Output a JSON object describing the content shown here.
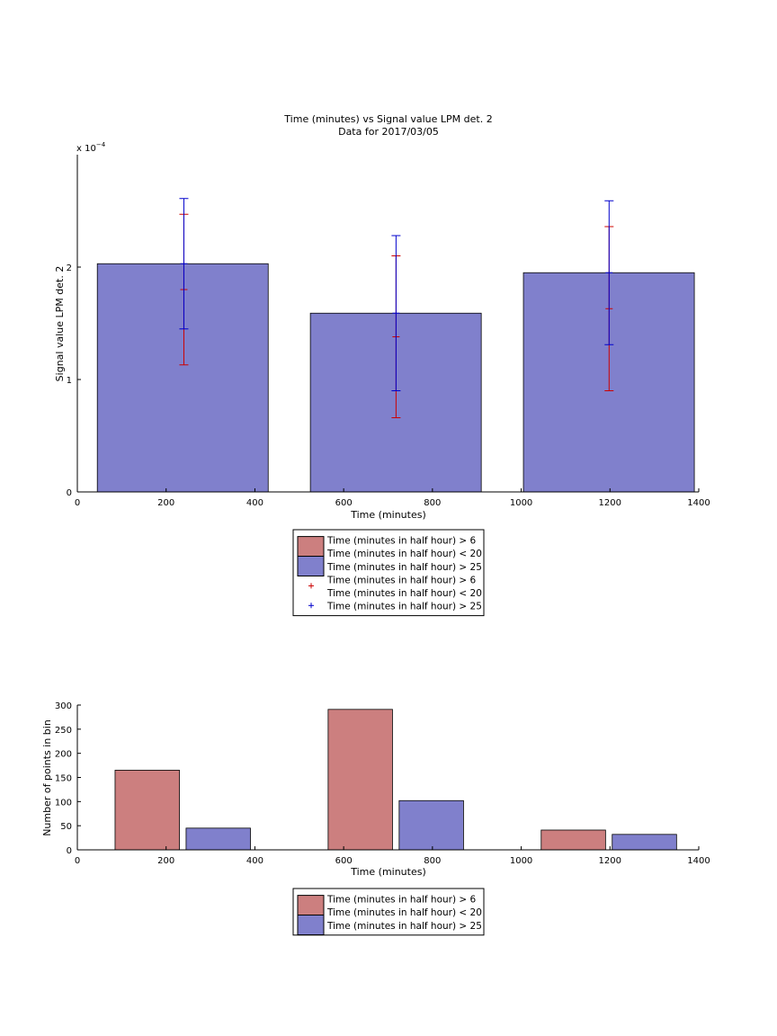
{
  "chart_data": [
    {
      "type": "bar",
      "title": "Time (minutes) vs Signal value LPM det. 2",
      "subtitle": "Data for 2017/03/05",
      "xlabel": "Time (minutes)",
      "ylabel": "Signal value LPM det. 2",
      "exponent_label": "x 10",
      "exponent_power": "−4",
      "xlim": [
        0,
        1400
      ],
      "ylim": [
        0,
        3.0
      ],
      "y_scale_factor": 0.0001,
      "xticks": [
        0,
        200,
        400,
        600,
        800,
        1000,
        1200,
        1400
      ],
      "yticks": [
        0,
        1,
        2
      ],
      "grid": false,
      "bars": [
        {
          "x_start": 45,
          "x_end": 430,
          "value": 2.03
        },
        {
          "x_start": 525,
          "x_end": 910,
          "value": 1.59
        },
        {
          "x_start": 1005,
          "x_end": 1390,
          "value": 1.95
        }
      ],
      "errorbars": [
        {
          "series": "Time (minutes in half hour) > 6\nTime (minutes in half hour) < 20",
          "x": 240,
          "center": 1.8,
          "low": 1.13,
          "high": 2.47,
          "color": "#cc0000"
        },
        {
          "series": "Time (minutes in half hour) > 25",
          "x": 240,
          "center": 2.03,
          "low": 1.45,
          "high": 2.61,
          "color": "#0000cc"
        },
        {
          "series": "Time (minutes in half hour) > 6\nTime (minutes in half hour) < 20",
          "x": 718,
          "center": 1.38,
          "low": 0.66,
          "high": 2.1,
          "color": "#cc0000"
        },
        {
          "series": "Time (minutes in half hour) > 25",
          "x": 718,
          "center": 1.59,
          "low": 0.9,
          "high": 2.28,
          "color": "#0000cc"
        },
        {
          "series": "Time (minutes in half hour) > 6\nTime (minutes in half hour) < 20",
          "x": 1198,
          "center": 1.63,
          "low": 0.9,
          "high": 2.36,
          "color": "#cc0000"
        },
        {
          "series": "Time (minutes in half hour) > 25",
          "x": 1198,
          "center": 1.95,
          "low": 1.31,
          "high": 2.59,
          "color": "#0000cc"
        }
      ],
      "bar_color": "#8080cc",
      "legend": {
        "placement": "below",
        "entries": [
          {
            "kind": "patch",
            "color": "#cc7f7f",
            "lines": [
              "Time (minutes in half hour) > 6",
              "Time (minutes in half hour) < 20"
            ]
          },
          {
            "kind": "patch",
            "color": "#8080cc",
            "lines": [
              "Time (minutes in half hour) > 25"
            ]
          },
          {
            "kind": "marker",
            "color": "#cc0000",
            "lines": [
              "Time (minutes in half hour) > 6",
              "Time (minutes in half hour) < 20"
            ]
          },
          {
            "kind": "marker",
            "color": "#0000cc",
            "lines": [
              "Time (minutes in half hour) > 25"
            ]
          }
        ]
      }
    },
    {
      "type": "bar",
      "xlabel": "Time (minutes)",
      "ylabel": "Number of points in bin",
      "xlim": [
        0,
        1400
      ],
      "ylim": [
        0,
        300
      ],
      "xticks": [
        0,
        200,
        400,
        600,
        800,
        1000,
        1200,
        1400
      ],
      "yticks": [
        0,
        50,
        100,
        150,
        200,
        250,
        300
      ],
      "grid": false,
      "series": [
        {
          "name": "Time (minutes in half hour) > 6\nTime (minutes in half hour) < 20",
          "color": "#cc7f7f",
          "bars": [
            {
              "x_start": 85,
              "x_end": 230,
              "value": 165
            },
            {
              "x_start": 565,
              "x_end": 710,
              "value": 291
            },
            {
              "x_start": 1045,
              "x_end": 1190,
              "value": 41
            }
          ]
        },
        {
          "name": "Time (minutes in half hour) > 25",
          "color": "#8080cc",
          "bars": [
            {
              "x_start": 245,
              "x_end": 390,
              "value": 45
            },
            {
              "x_start": 725,
              "x_end": 870,
              "value": 102
            },
            {
              "x_start": 1205,
              "x_end": 1350,
              "value": 32
            }
          ]
        }
      ],
      "legend": {
        "placement": "below",
        "entries": [
          {
            "kind": "patch",
            "color": "#cc7f7f",
            "lines": [
              "Time (minutes in half hour) > 6",
              "Time (minutes in half hour) < 20"
            ]
          },
          {
            "kind": "patch",
            "color": "#8080cc",
            "lines": [
              "Time (minutes in half hour) > 25"
            ]
          }
        ]
      }
    }
  ]
}
